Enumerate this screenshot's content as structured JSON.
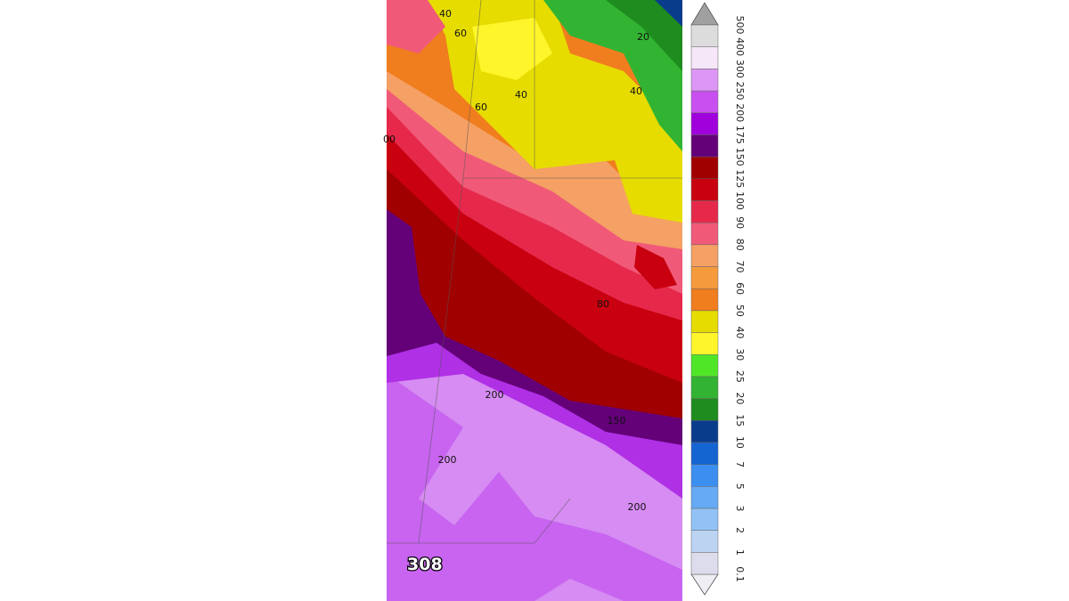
{
  "map": {
    "contour_labels": [
      "40",
      "60",
      "20",
      "40",
      "40",
      "60",
      "00",
      "80",
      "200",
      "150",
      "200",
      "200"
    ],
    "frame_label": "308"
  },
  "colorbar": {
    "labels": [
      "0.1",
      "1",
      "2",
      "3",
      "5",
      "7",
      "10",
      "15",
      "20",
      "25",
      "30",
      "40",
      "50",
      "60",
      "70",
      "80",
      "90",
      "100",
      "125",
      "150",
      "175",
      "200",
      "250",
      "300",
      "400",
      "500"
    ],
    "colors": [
      "#dcdcec",
      "#bcd4f2",
      "#92c2f5",
      "#66aaf5",
      "#3c8ef0",
      "#1464d2",
      "#0a3c8c",
      "#1e8c1e",
      "#32b432",
      "#50e628",
      "#fff52b",
      "#e6dc00",
      "#f07d1e",
      "#f59b3c",
      "#f5a064",
      "#f05a78",
      "#e6284b",
      "#c8000f",
      "#a00000",
      "#640078",
      "#a000dc",
      "#c850f0",
      "#dc96f5",
      "#f5e6f8",
      "#dcdcdc"
    ],
    "under_color": "#eeeef4",
    "over_color": "#a0a0a0"
  }
}
